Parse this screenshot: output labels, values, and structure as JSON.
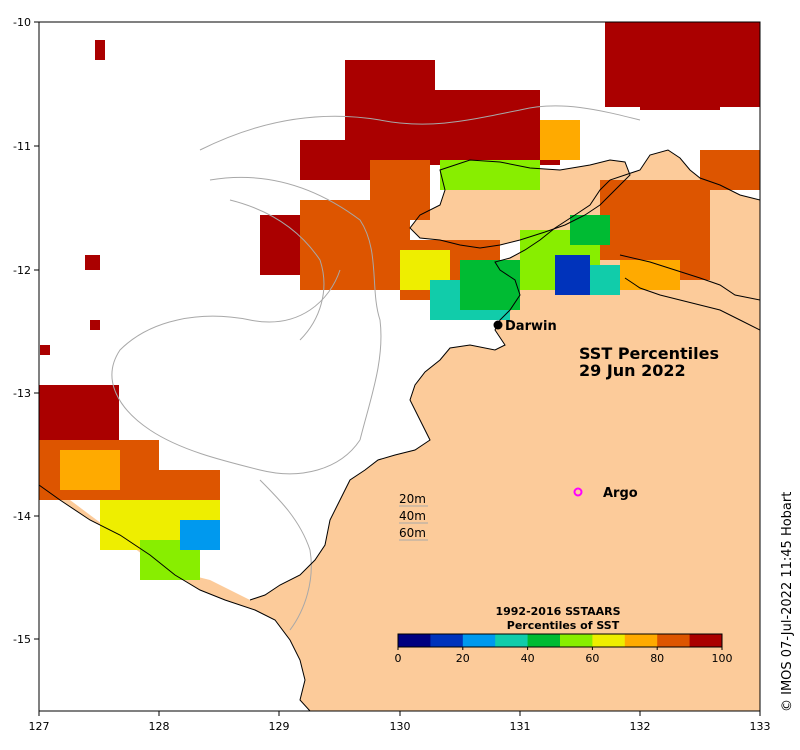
{
  "map": {
    "title_line1": "SST Percentiles",
    "title_line2": "29 Jun 2022",
    "credit": "© IMOS 07-Jul-2022 11:45 Hobart",
    "colors": {
      "land": "#fccb9a",
      "sea_missing": "#ffffff",
      "contour": "#a8a8a8",
      "coast": "#000000"
    }
  },
  "axes": {
    "x_ticks": [
      "127",
      "128",
      "129",
      "130",
      "131",
      "132",
      "133"
    ],
    "y_ticks": [
      "-10",
      "-11",
      "-12",
      "-13",
      "-14",
      "-15"
    ]
  },
  "places": {
    "darwin": "Darwin",
    "argo": "Argo"
  },
  "depth_legend": {
    "d20": "20m",
    "d40": "40m",
    "d60": "60m"
  },
  "colorbar": {
    "title1": "1992-2016 SSTAARS",
    "title2": "Percentiles of SST",
    "ticks": [
      "0",
      "20",
      "40",
      "60",
      "80",
      "100"
    ],
    "colors": [
      "#000080",
      "#0033bb",
      "#0099ee",
      "#11ccaa",
      "#00bb33",
      "#88ee00",
      "#eeee00",
      "#ffaa00",
      "#dd5500",
      "#aa0000"
    ]
  }
}
